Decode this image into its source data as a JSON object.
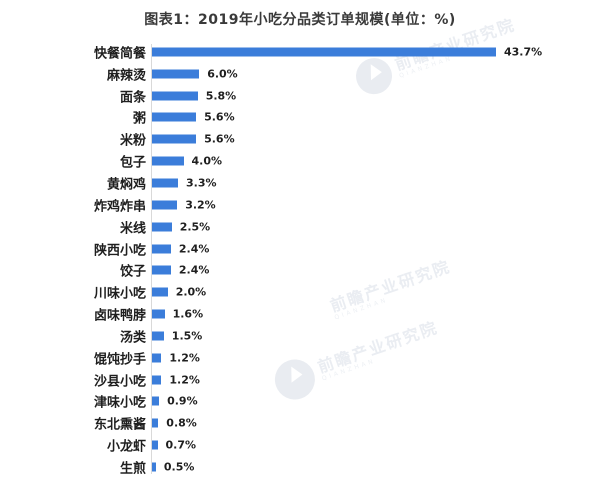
{
  "chart_data": {
    "type": "bar",
    "orientation": "horizontal",
    "title": "图表1：2019年小吃分品类订单规模(单位：%)",
    "categories": [
      "快餐简餐",
      "麻辣烫",
      "面条",
      "粥",
      "米粉",
      "包子",
      "黄焖鸡",
      "炸鸡炸串",
      "米线",
      "陕西小吃",
      "饺子",
      "川味小吃",
      "卤味鸭脖",
      "汤类",
      "馄饨抄手",
      "沙县小吃",
      "津味小吃",
      "东北熏酱",
      "小龙虾",
      "生煎"
    ],
    "values": [
      43.7,
      6.0,
      5.8,
      5.6,
      5.6,
      4.0,
      3.3,
      3.2,
      2.5,
      2.4,
      2.4,
      2.0,
      1.6,
      1.5,
      1.2,
      1.2,
      0.9,
      0.8,
      0.7,
      0.5
    ],
    "value_suffix": "%",
    "xlabel": "",
    "ylabel": "",
    "xlim": [
      0,
      45
    ],
    "grid": false,
    "legend": false,
    "value_labels": "end-of-bar",
    "bar_color": "#3b7dda",
    "axis_color": "#d9d9d9",
    "text_color": "#1f1f1f",
    "title_color": "#3a3a3a"
  },
  "watermark": {
    "text": "前瞻产业研究院",
    "subtext": "QIANZHAN",
    "color": "#eaedf2"
  }
}
